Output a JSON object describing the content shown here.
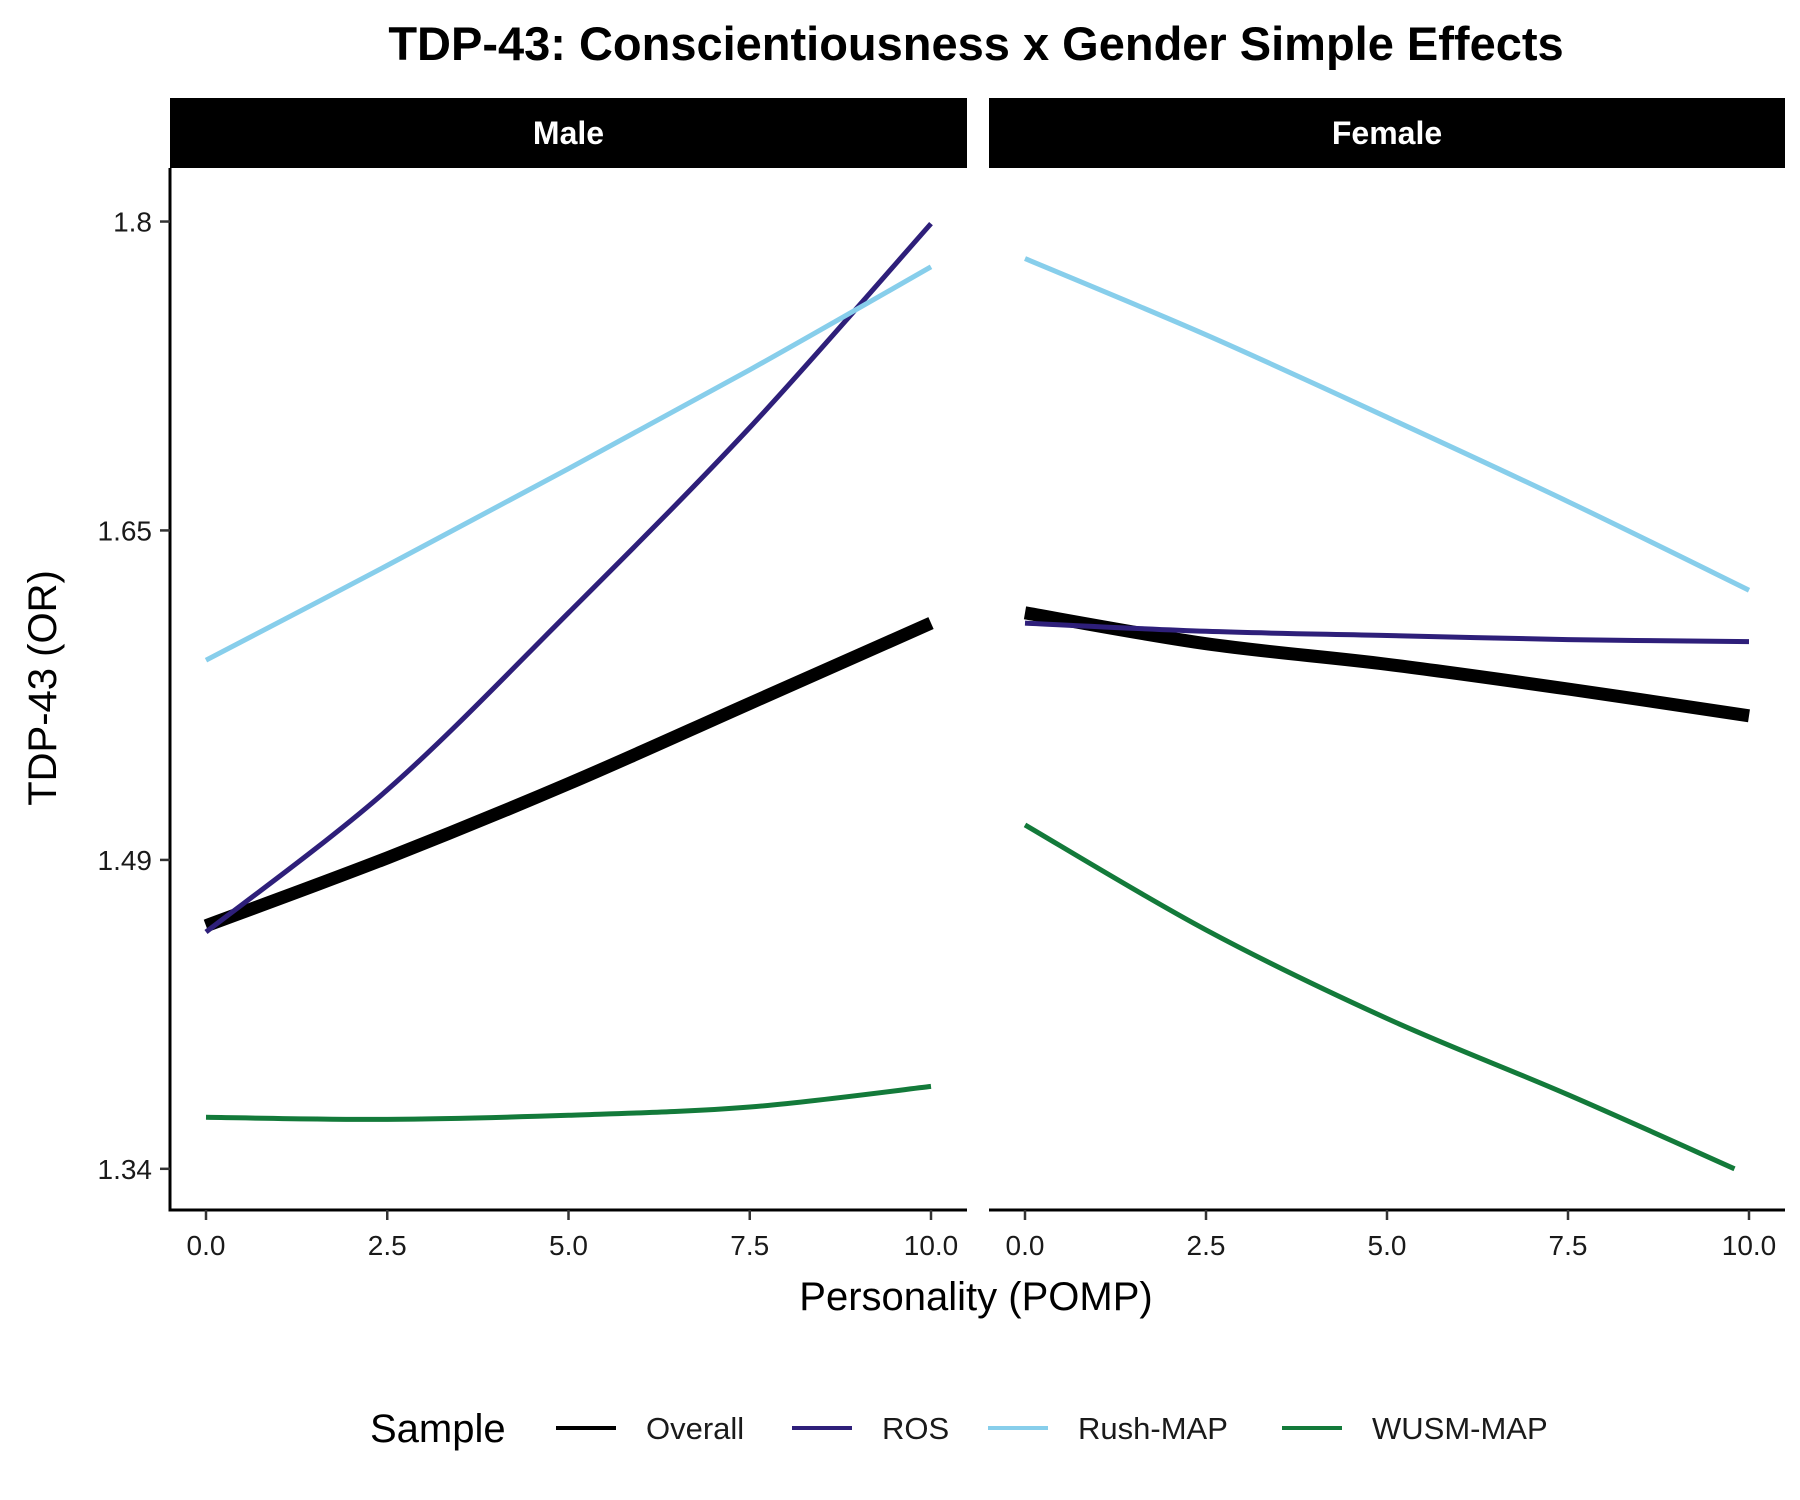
{
  "chart_data": {
    "type": "line",
    "title": "TDP-43: Conscientiousness x Gender Simple Effects",
    "xlabel": "Personality (POMP)",
    "ylabel": "TDP-43 (OR)",
    "xlim": [
      0,
      10
    ],
    "ylim": [
      1.32,
      1.826
    ],
    "x_ticks": [
      0,
      2.5,
      5,
      7.5,
      10
    ],
    "x_tick_labels": [
      "0.0",
      "2.5",
      "5.0",
      "7.5",
      "10.0"
    ],
    "y_ticks": [
      1.34,
      1.49,
      1.65,
      1.8
    ],
    "y_tick_labels": [
      "1.34",
      "1.49",
      "1.65",
      "1.8"
    ],
    "grid": false,
    "legend": {
      "title": "Sample",
      "position": "bottom",
      "entries": [
        "Overall",
        "ROS",
        "Rush-MAP",
        "WUSM-MAP"
      ]
    },
    "panels": [
      {
        "label": "Male",
        "series": [
          {
            "name": "Overall",
            "color": "#000000",
            "x": [
              0,
              2.5,
              5,
              7.5,
              10
            ],
            "y": [
              1.458,
              1.491,
              1.527,
              1.566,
              1.605
            ]
          },
          {
            "name": "ROS",
            "color": "#2e1f7a",
            "x": [
              0,
              2.5,
              5,
              7.5,
              10
            ],
            "y": [
              1.455,
              1.524,
              1.61,
              1.7,
              1.799
            ]
          },
          {
            "name": "Rush-MAP",
            "color": "#87ceeb",
            "x": [
              0,
              2.5,
              5,
              7.5,
              10
            ],
            "y": [
              1.587,
              1.633,
              1.68,
              1.728,
              1.778
            ]
          },
          {
            "name": "WUSM-MAP",
            "color": "#137a3a",
            "x": [
              0,
              2.5,
              5,
              7.5,
              10
            ],
            "y": [
              1.365,
              1.364,
              1.366,
              1.37,
              1.38
            ]
          }
        ]
      },
      {
        "label": "Female",
        "series": [
          {
            "name": "Overall",
            "color": "#000000",
            "x": [
              0,
              2.5,
              5,
              7.5,
              10
            ],
            "y": [
              1.61,
              1.595,
              1.585,
              1.573,
              1.56
            ]
          },
          {
            "name": "ROS",
            "color": "#2e1f7a",
            "x": [
              0,
              2.5,
              5,
              7.5,
              10
            ],
            "y": [
              1.605,
              1.601,
              1.599,
              1.597,
              1.596
            ]
          },
          {
            "name": "Rush-MAP",
            "color": "#87ceeb",
            "x": [
              0,
              2.5,
              5,
              7.5,
              10
            ],
            "y": [
              1.782,
              1.745,
              1.705,
              1.664,
              1.621
            ]
          },
          {
            "name": "WUSM-MAP",
            "color": "#137a3a",
            "x": [
              0,
              2.5,
              5,
              7.5,
              9.8
            ],
            "y": [
              1.507,
              1.456,
              1.413,
              1.376,
              1.34
            ]
          }
        ]
      }
    ]
  }
}
